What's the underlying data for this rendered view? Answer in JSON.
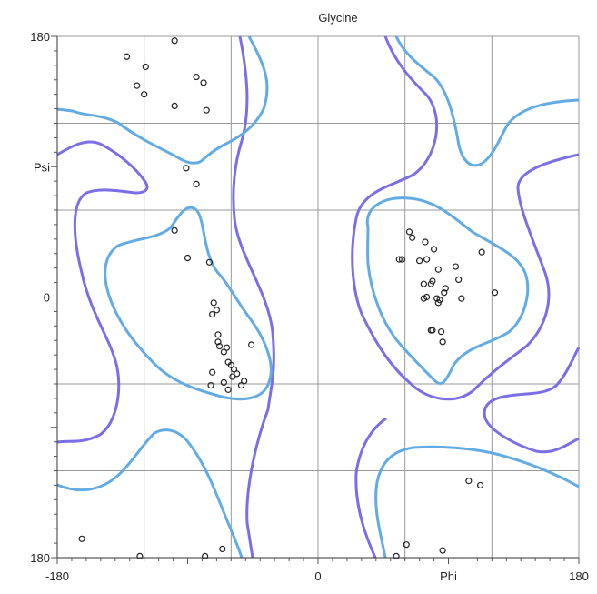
{
  "chart_data": {
    "type": "scatter",
    "title": "Glycine",
    "xlabel": "Phi",
    "ylabel": "Psi",
    "xlim": [
      -180,
      180
    ],
    "ylim": [
      -180,
      180
    ],
    "x_tick_labels": [
      "-180",
      "0",
      "180"
    ],
    "y_tick_labels": [
      "180",
      "0",
      "-180"
    ],
    "grid": true,
    "colors": {
      "grid": "#999999",
      "contour_outer": "#7b6ee6",
      "contour_inner": "#62ace3",
      "points": "#222222"
    },
    "points": [
      [
        -132,
        166
      ],
      [
        -119,
        159
      ],
      [
        -99,
        177
      ],
      [
        -84,
        152
      ],
      [
        -79,
        148
      ],
      [
        -125,
        146
      ],
      [
        -120,
        140
      ],
      [
        -99,
        132
      ],
      [
        -77,
        129
      ],
      [
        -91,
        89
      ],
      [
        -84,
        78
      ],
      [
        -99,
        46
      ],
      [
        -90,
        27
      ],
      [
        -75,
        24
      ],
      [
        -72,
        -4
      ],
      [
        -73,
        -12
      ],
      [
        -70,
        -9
      ],
      [
        -69,
        -26
      ],
      [
        -69,
        -31
      ],
      [
        -68,
        -34
      ],
      [
        -65,
        -38
      ],
      [
        -63,
        -35
      ],
      [
        -60,
        -47
      ],
      [
        -62,
        -45
      ],
      [
        -58,
        -50
      ],
      [
        -59,
        -55
      ],
      [
        -56,
        -53
      ],
      [
        -73,
        -52
      ],
      [
        -65,
        -59
      ],
      [
        -62,
        -64
      ],
      [
        -51,
        -58
      ],
      [
        -46,
        -33
      ],
      [
        -53,
        -61
      ],
      [
        -74,
        -61
      ],
      [
        63,
        45
      ],
      [
        65,
        41
      ],
      [
        74,
        38
      ],
      [
        56,
        26
      ],
      [
        58,
        26
      ],
      [
        80,
        33
      ],
      [
        70,
        25
      ],
      [
        75,
        26
      ],
      [
        83,
        19
      ],
      [
        95,
        21
      ],
      [
        97,
        12
      ],
      [
        88,
        6
      ],
      [
        113,
        31
      ],
      [
        122,
        3
      ],
      [
        73,
        -1
      ],
      [
        75,
        0
      ],
      [
        82,
        -1
      ],
      [
        83,
        -4
      ],
      [
        84,
        -2
      ],
      [
        87,
        3
      ],
      [
        73,
        9
      ],
      [
        79,
        11
      ],
      [
        78,
        9
      ],
      [
        99,
        -1
      ],
      [
        78,
        -23
      ],
      [
        79,
        -23
      ],
      [
        85,
        -24
      ],
      [
        86,
        -31
      ],
      [
        104,
        -127
      ],
      [
        112,
        -130
      ],
      [
        -163,
        -167
      ],
      [
        -123,
        -179
      ],
      [
        -78,
        -179
      ],
      [
        -66,
        -174
      ],
      [
        54,
        -179
      ],
      [
        61,
        -171
      ],
      [
        86,
        -175
      ]
    ]
  }
}
